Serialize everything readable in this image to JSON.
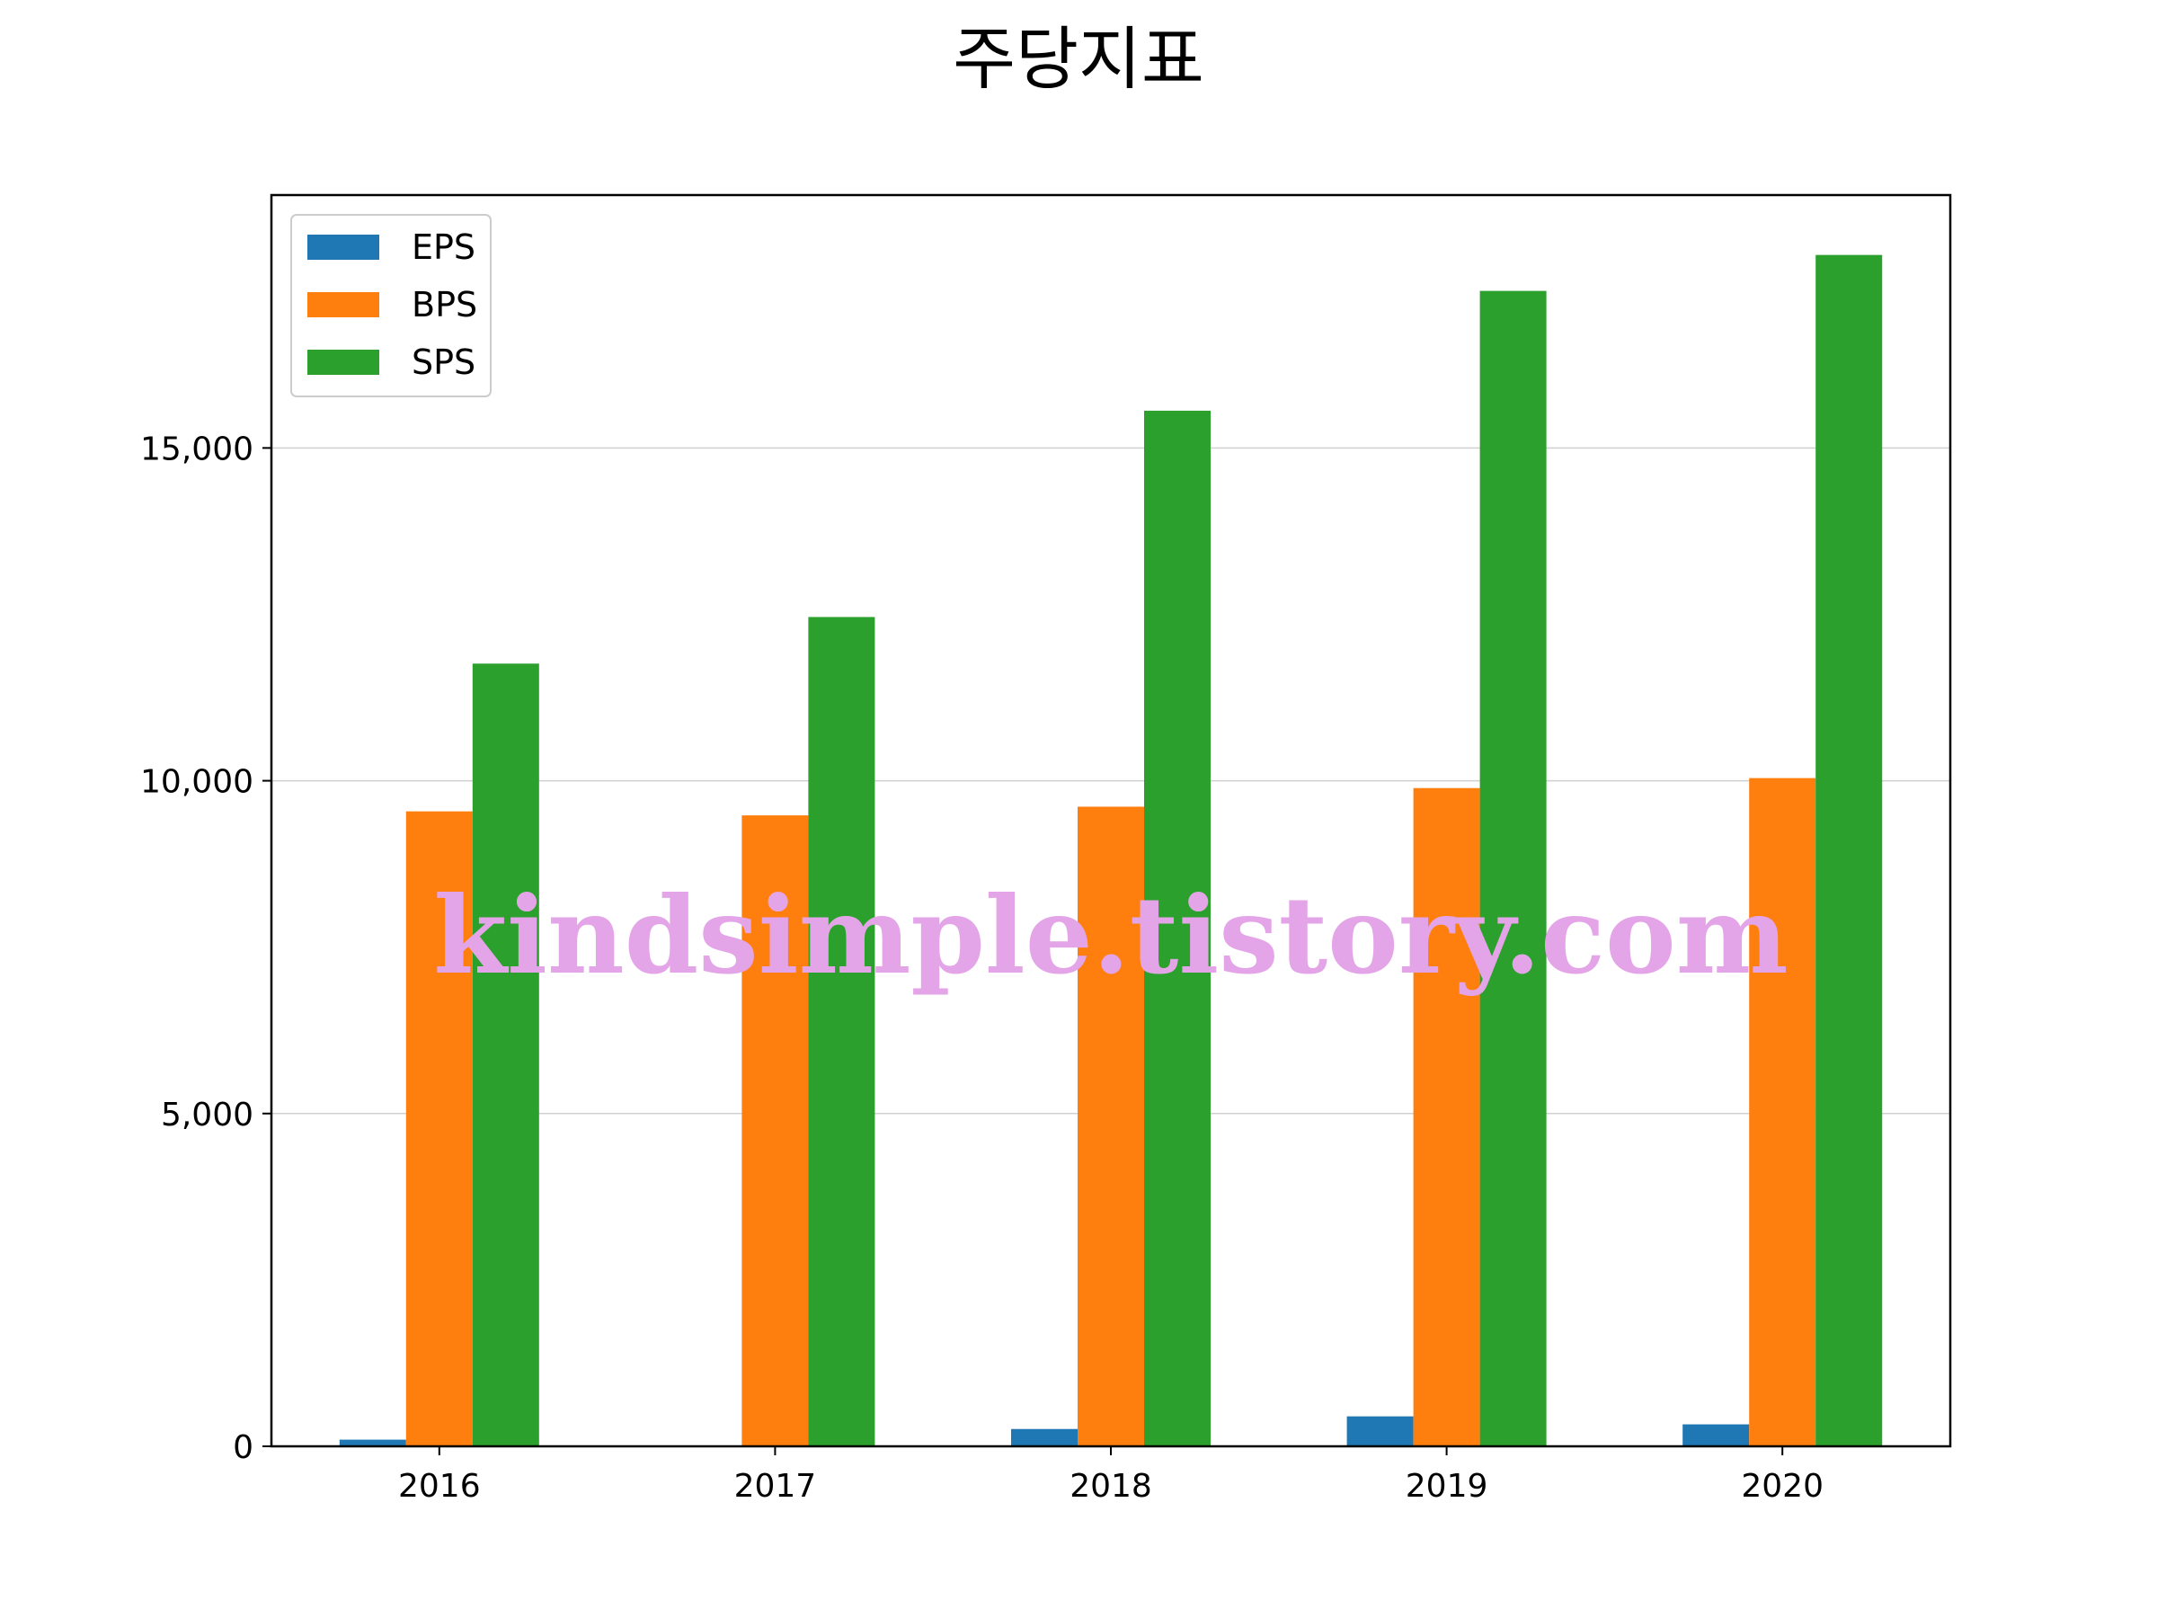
{
  "chart_data": {
    "type": "bar",
    "title": "주당지표",
    "xlabel": "",
    "ylabel": "",
    "categories": [
      "2016",
      "2017",
      "2018",
      "2019",
      "2020"
    ],
    "series": [
      {
        "name": "EPS",
        "color": "#1f77b4",
        "values": [
          100,
          0,
          260,
          450,
          330
        ]
      },
      {
        "name": "BPS",
        "color": "#ff7f0e",
        "values": [
          9540,
          9480,
          9610,
          9890,
          10040
        ]
      },
      {
        "name": "SPS",
        "color": "#2ca02c",
        "values": [
          11760,
          12460,
          15560,
          17360,
          17900
        ]
      }
    ],
    "ylim": [
      0,
      18800
    ],
    "yticks": [
      0,
      5000,
      10000,
      15000
    ],
    "ytick_labels": [
      "0",
      "5,000",
      "10,000",
      "15,000"
    ],
    "grid": "y",
    "legend_position": "top-left",
    "watermark": "kindsimple.tistory.com"
  }
}
